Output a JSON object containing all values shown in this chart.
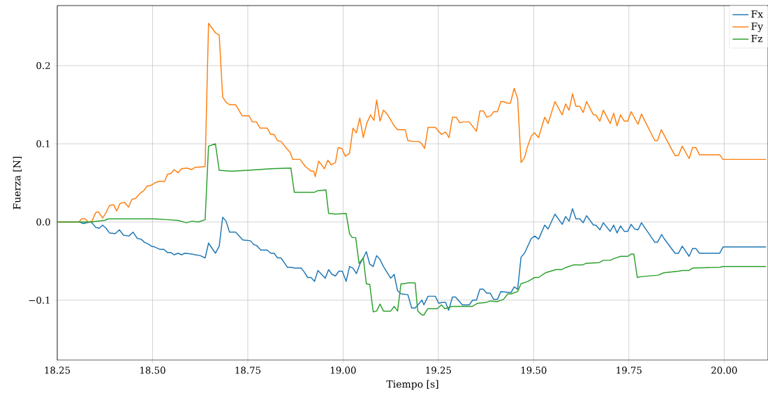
{
  "chart_data": {
    "type": "line",
    "xlabel": "Tiempo [s]",
    "ylabel": "Fuerza [N]",
    "xlim": [
      18.25,
      20.115
    ],
    "ylim": [
      -0.1768,
      0.2768
    ],
    "xticks": [
      {
        "value": 18.25,
        "label": "18.25"
      },
      {
        "value": 18.5,
        "label": "18.50"
      },
      {
        "value": 18.75,
        "label": "18.75"
      },
      {
        "value": 19.0,
        "label": "19.00"
      },
      {
        "value": 19.25,
        "label": "19.25"
      },
      {
        "value": 19.5,
        "label": "19.50"
      },
      {
        "value": 19.75,
        "label": "19.75"
      },
      {
        "value": 20.0,
        "label": "20.00"
      }
    ],
    "yticks": [
      {
        "value": -0.1,
        "label": "−0.1"
      },
      {
        "value": 0.0,
        "label": "0.0"
      },
      {
        "value": 0.1,
        "label": "0.1"
      },
      {
        "value": 0.2,
        "label": "0.2"
      }
    ],
    "grid": true,
    "legend": "top right",
    "series": [
      {
        "name": "Fx",
        "color": "#1f77b4",
        "x": [
          18.25,
          18.309,
          18.318,
          18.327,
          18.336,
          18.341,
          18.351,
          18.36,
          18.369,
          18.378,
          18.387,
          18.402,
          18.413,
          18.424,
          18.438,
          18.449,
          18.46,
          18.47,
          18.479,
          18.488,
          18.497,
          18.506,
          18.519,
          18.53,
          18.539,
          18.548,
          18.557,
          18.567,
          18.576,
          18.585,
          18.603,
          18.612,
          18.625,
          18.638,
          18.647,
          18.665,
          18.675,
          18.684,
          18.693,
          18.702,
          18.718,
          18.737,
          18.757,
          18.766,
          18.773,
          18.784,
          18.801,
          18.81,
          18.819,
          18.828,
          18.837,
          18.854,
          18.865,
          18.872,
          18.89,
          18.898,
          18.907,
          18.916,
          18.925,
          18.934,
          18.953,
          18.962,
          18.971,
          18.98,
          18.989,
          18.998,
          19.008,
          19.017,
          19.026,
          19.035,
          19.044,
          19.053,
          19.061,
          19.07,
          19.079,
          19.088,
          19.097,
          19.106,
          19.125,
          19.134,
          19.143,
          19.152,
          19.17,
          19.18,
          19.189,
          19.207,
          19.212,
          19.223,
          19.242,
          19.251,
          19.26,
          19.269,
          19.277,
          19.287,
          19.295,
          19.313,
          19.331,
          19.34,
          19.35,
          19.359,
          19.368,
          19.377,
          19.386,
          19.395,
          19.405,
          19.414,
          19.432,
          19.441,
          19.449,
          19.458,
          19.467,
          19.476,
          19.494,
          19.503,
          19.513,
          19.529,
          19.538,
          19.556,
          19.575,
          19.584,
          19.593,
          19.602,
          19.611,
          19.621,
          19.63,
          19.639,
          19.657,
          19.663,
          19.674,
          19.683,
          19.701,
          19.71,
          19.719,
          19.728,
          19.738,
          19.747,
          19.756,
          19.765,
          19.774,
          19.783,
          19.818,
          19.825,
          19.836,
          19.842,
          19.871,
          19.88,
          19.89,
          19.908,
          19.917,
          19.926,
          19.935,
          19.988,
          19.997,
          20.11
        ],
        "values": [
          0,
          0,
          -0.002,
          -0.001,
          0,
          -0.001,
          -0.007,
          -0.008,
          -0.004,
          -0.008,
          -0.014,
          -0.015,
          -0.01,
          -0.017,
          -0.018,
          -0.013,
          -0.021,
          -0.022,
          -0.026,
          -0.028,
          -0.031,
          -0.032,
          -0.035,
          -0.035,
          -0.039,
          -0.039,
          -0.042,
          -0.04,
          -0.042,
          -0.04,
          -0.041,
          -0.042,
          -0.043,
          -0.046,
          -0.027,
          -0.04,
          -0.031,
          0.006,
          0.001,
          -0.013,
          -0.013,
          -0.023,
          -0.024,
          -0.029,
          -0.03,
          -0.036,
          -0.036,
          -0.04,
          -0.04,
          -0.046,
          -0.046,
          -0.058,
          -0.058,
          -0.059,
          -0.059,
          -0.064,
          -0.071,
          -0.071,
          -0.076,
          -0.062,
          -0.072,
          -0.061,
          -0.067,
          -0.069,
          -0.063,
          -0.063,
          -0.076,
          -0.057,
          -0.059,
          -0.066,
          -0.054,
          -0.046,
          -0.038,
          -0.054,
          -0.057,
          -0.043,
          -0.048,
          -0.057,
          -0.072,
          -0.067,
          -0.088,
          -0.092,
          -0.093,
          -0.11,
          -0.11,
          -0.1,
          -0.106,
          -0.095,
          -0.095,
          -0.104,
          -0.103,
          -0.103,
          -0.113,
          -0.096,
          -0.096,
          -0.106,
          -0.106,
          -0.1,
          -0.1,
          -0.086,
          -0.086,
          -0.091,
          -0.091,
          -0.099,
          -0.099,
          -0.089,
          -0.09,
          -0.09,
          -0.083,
          -0.086,
          -0.045,
          -0.04,
          -0.021,
          -0.018,
          -0.022,
          -0.004,
          -0.009,
          0.01,
          -0.003,
          0.007,
          0.001,
          0.017,
          0.004,
          0.004,
          -0.001,
          0.008,
          -0.004,
          -0.004,
          -0.01,
          -0.001,
          -0.012,
          -0.004,
          -0.014,
          -0.005,
          -0.012,
          -0.012,
          -0.003,
          -0.009,
          -0.01,
          -0.001,
          -0.026,
          -0.026,
          -0.016,
          -0.021,
          -0.04,
          -0.04,
          -0.031,
          -0.044,
          -0.034,
          -0.034,
          -0.04,
          -0.04,
          -0.032,
          -0.032
        ]
      },
      {
        "name": "Fy",
        "color": "#ff7f0e",
        "x": [
          18.25,
          18.307,
          18.314,
          18.323,
          18.332,
          18.341,
          18.351,
          18.358,
          18.369,
          18.378,
          18.387,
          18.398,
          18.406,
          18.415,
          18.427,
          18.437,
          18.446,
          18.455,
          18.468,
          18.477,
          18.486,
          18.497,
          18.506,
          18.517,
          18.532,
          18.539,
          18.548,
          18.557,
          18.567,
          18.576,
          18.59,
          18.603,
          18.612,
          18.623,
          18.638,
          18.647,
          18.665,
          18.675,
          18.684,
          18.693,
          18.702,
          18.718,
          18.735,
          18.753,
          18.762,
          18.773,
          18.782,
          18.801,
          18.81,
          18.819,
          18.828,
          18.837,
          18.852,
          18.861,
          18.868,
          18.887,
          18.901,
          18.916,
          18.923,
          18.927,
          18.936,
          18.951,
          18.96,
          18.969,
          18.98,
          18.987,
          18.997,
          19.006,
          19.017,
          19.026,
          19.035,
          19.044,
          19.053,
          19.062,
          19.072,
          19.081,
          19.088,
          19.097,
          19.106,
          19.117,
          19.134,
          19.143,
          19.163,
          19.17,
          19.185,
          19.198,
          19.205,
          19.214,
          19.223,
          19.242,
          19.258,
          19.269,
          19.278,
          19.287,
          19.297,
          19.306,
          19.317,
          19.331,
          19.35,
          19.359,
          19.368,
          19.377,
          19.388,
          19.395,
          19.405,
          19.414,
          19.421,
          19.43,
          19.439,
          19.449,
          19.458,
          19.467,
          19.476,
          19.483,
          19.494,
          19.502,
          19.513,
          19.529,
          19.538,
          19.556,
          19.575,
          19.584,
          19.593,
          19.602,
          19.611,
          19.621,
          19.63,
          19.639,
          19.657,
          19.663,
          19.674,
          19.683,
          19.701,
          19.71,
          19.719,
          19.728,
          19.738,
          19.747,
          19.756,
          19.774,
          19.783,
          19.818,
          19.825,
          19.835,
          19.871,
          19.88,
          19.89,
          19.908,
          19.917,
          19.926,
          19.935,
          19.988,
          19.997,
          20.11
        ],
        "values": [
          0,
          0,
          0.004,
          0.004,
          0,
          0.001,
          0.012,
          0.013,
          0.005,
          0.012,
          0.021,
          0.022,
          0.014,
          0.024,
          0.025,
          0.019,
          0.029,
          0.03,
          0.037,
          0.04,
          0.046,
          0.047,
          0.05,
          0.052,
          0.052,
          0.061,
          0.062,
          0.067,
          0.063,
          0.068,
          0.069,
          0.067,
          0.07,
          0.07,
          0.071,
          0.254,
          0.242,
          0.239,
          0.16,
          0.153,
          0.15,
          0.15,
          0.136,
          0.136,
          0.128,
          0.128,
          0.12,
          0.12,
          0.112,
          0.112,
          0.104,
          0.103,
          0.094,
          0.089,
          0.08,
          0.08,
          0.071,
          0.065,
          0.065,
          0.058,
          0.078,
          0.068,
          0.079,
          0.073,
          0.076,
          0.095,
          0.094,
          0.084,
          0.088,
          0.12,
          0.114,
          0.133,
          0.108,
          0.126,
          0.137,
          0.13,
          0.156,
          0.129,
          0.143,
          0.137,
          0.123,
          0.118,
          0.118,
          0.104,
          0.103,
          0.103,
          0.101,
          0.094,
          0.121,
          0.121,
          0.112,
          0.115,
          0.108,
          0.134,
          0.134,
          0.127,
          0.128,
          0.128,
          0.116,
          0.142,
          0.142,
          0.134,
          0.136,
          0.141,
          0.141,
          0.154,
          0.154,
          0.152,
          0.152,
          0.171,
          0.158,
          0.076,
          0.082,
          0.095,
          0.11,
          0.114,
          0.108,
          0.134,
          0.126,
          0.154,
          0.137,
          0.151,
          0.143,
          0.164,
          0.148,
          0.148,
          0.14,
          0.154,
          0.137,
          0.137,
          0.129,
          0.143,
          0.126,
          0.139,
          0.123,
          0.137,
          0.129,
          0.129,
          0.141,
          0.125,
          0.138,
          0.104,
          0.104,
          0.118,
          0.085,
          0.085,
          0.097,
          0.081,
          0.095,
          0.095,
          0.086,
          0.086,
          0.08,
          0.08
        ]
      },
      {
        "name": "Fz",
        "color": "#2ca02c",
        "x": [
          18.25,
          18.338,
          18.356,
          18.374,
          18.384,
          18.448,
          18.503,
          18.539,
          18.567,
          18.589,
          18.603,
          18.621,
          18.638,
          18.647,
          18.665,
          18.675,
          18.707,
          18.75,
          18.81,
          18.863,
          18.872,
          18.925,
          18.934,
          18.955,
          18.962,
          18.98,
          19.008,
          19.017,
          19.024,
          19.033,
          19.042,
          19.053,
          19.061,
          19.07,
          19.079,
          19.088,
          19.097,
          19.106,
          19.125,
          19.134,
          19.143,
          19.152,
          19.161,
          19.17,
          19.189,
          19.196,
          19.207,
          19.212,
          19.222,
          19.247,
          19.258,
          19.267,
          19.286,
          19.339,
          19.353,
          19.375,
          19.386,
          19.403,
          19.421,
          19.432,
          19.441,
          19.458,
          19.467,
          19.485,
          19.503,
          19.513,
          19.531,
          19.558,
          19.573,
          19.586,
          19.604,
          19.628,
          19.637,
          19.672,
          19.683,
          19.701,
          19.71,
          19.728,
          19.747,
          19.756,
          19.763,
          19.772,
          19.782,
          19.827,
          19.842,
          19.88,
          19.89,
          19.908,
          19.917,
          19.988,
          19.997,
          20.11
        ],
        "values": [
          0,
          0,
          0.001,
          0.002,
          0.004,
          0.004,
          0.004,
          0.003,
          0.002,
          -0.001,
          0.001,
          0,
          0.003,
          0.097,
          0.1,
          0.066,
          0.065,
          0.066,
          0.068,
          0.069,
          0.038,
          0.038,
          0.04,
          0.041,
          0.011,
          0.01,
          0.011,
          -0.015,
          -0.02,
          -0.02,
          -0.053,
          -0.046,
          -0.079,
          -0.08,
          -0.115,
          -0.114,
          -0.105,
          -0.114,
          -0.114,
          -0.108,
          -0.114,
          -0.079,
          -0.079,
          -0.078,
          -0.078,
          -0.114,
          -0.119,
          -0.119,
          -0.111,
          -0.111,
          -0.106,
          -0.111,
          -0.108,
          -0.108,
          -0.104,
          -0.103,
          -0.101,
          -0.102,
          -0.099,
          -0.092,
          -0.092,
          -0.089,
          -0.079,
          -0.076,
          -0.071,
          -0.071,
          -0.065,
          -0.061,
          -0.061,
          -0.058,
          -0.055,
          -0.055,
          -0.053,
          -0.052,
          -0.049,
          -0.049,
          -0.047,
          -0.044,
          -0.044,
          -0.041,
          -0.041,
          -0.071,
          -0.07,
          -0.068,
          -0.065,
          -0.063,
          -0.062,
          -0.062,
          -0.059,
          -0.058,
          -0.057,
          -0.057
        ]
      }
    ]
  }
}
